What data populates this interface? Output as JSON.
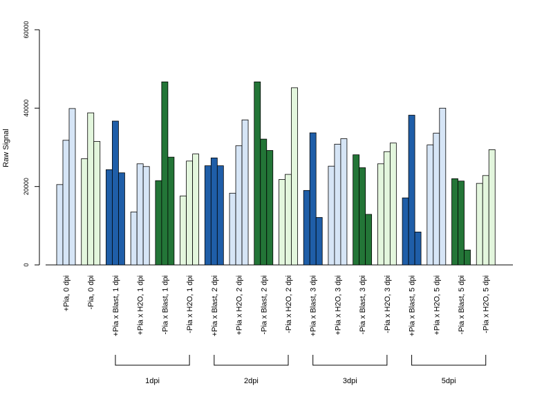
{
  "chart_data": {
    "type": "bar",
    "ylabel": "Raw Signal",
    "ylim": [
      0,
      60000
    ],
    "yticks": [
      0,
      20000,
      40000,
      60000
    ],
    "grid": false,
    "categories": [
      "+Pia, 0 dpi",
      "-Pia, 0 dpi",
      "+Pia x Blast, 1 dpi",
      "+Pia x H2O, 1 dpi",
      "-Pia x Blast, 1 dpi",
      "-Pia x H2O, 1 dpi",
      "+Pia x Blast, 2 dpi",
      "+Pia x H2O, 2 dpi",
      "-Pia x Blast, 2 dpi",
      "-Pia x H2O, 2 dpi",
      "+Pia x Blast, 3 dpi",
      "+Pia x H2O, 3 dpi",
      "-Pia x Blast, 3 dpi",
      "-Pia x H2O, 3 dpi",
      "+Pia x Blast, 5 dpi",
      "+Pia x H2O, 5 dpi",
      "-Pia x Blast, 5 dpi",
      "-Pia x H2O, 5 dpi"
    ],
    "replicates": [
      [
        20500,
        31800,
        39900
      ],
      [
        27100,
        38800,
        31500
      ],
      [
        24300,
        36700,
        23500
      ],
      [
        13500,
        25800,
        25100
      ],
      [
        21500,
        46700,
        27500
      ],
      [
        17600,
        26500,
        28300
      ],
      [
        25300,
        27300,
        25300
      ],
      [
        18300,
        30400,
        37000
      ],
      [
        46700,
        32100,
        29200
      ],
      [
        21800,
        23100,
        45200
      ],
      [
        19000,
        33700,
        12100
      ],
      [
        25200,
        30800,
        32200
      ],
      [
        28100,
        24800,
        12900
      ],
      [
        25800,
        28900,
        31100
      ],
      [
        17100,
        38200,
        8400
      ],
      [
        30600,
        33600,
        40000
      ],
      [
        22000,
        21400,
        3800
      ],
      [
        20800,
        22800,
        29400
      ]
    ],
    "bar_colors": [
      "#d6e5f6",
      "#e3f6dd",
      "#1f5ea8",
      "#d6e5f6",
      "#237537",
      "#e3f6dd",
      "#1f5ea8",
      "#d6e5f6",
      "#237537",
      "#e3f6dd",
      "#1f5ea8",
      "#d6e5f6",
      "#237537",
      "#e3f6dd",
      "#1f5ea8",
      "#d6e5f6",
      "#237537",
      "#e3f6dd"
    ],
    "groups": [
      {
        "label": "1dpi",
        "first": 2,
        "last": 5
      },
      {
        "label": "2dpi",
        "first": 6,
        "last": 9
      },
      {
        "label": "3dpi",
        "first": 10,
        "last": 13
      },
      {
        "label": "5dpi",
        "first": 14,
        "last": 17
      }
    ]
  }
}
